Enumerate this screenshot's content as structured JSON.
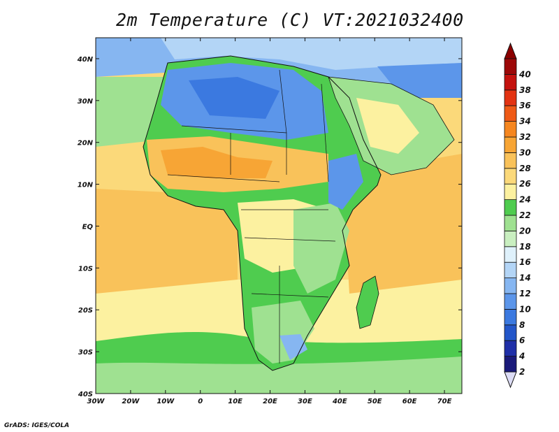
{
  "title": "2m Temperature (C) VT:2021032400",
  "credit": "GrADS: IGES/COLA",
  "map": {
    "lon_range": [
      -30,
      75
    ],
    "lat_range": [
      -40,
      45
    ],
    "lon_ticks": [
      "30W",
      "20W",
      "10W",
      "0",
      "10E",
      "20E",
      "30E",
      "40E",
      "50E",
      "60E",
      "70E"
    ],
    "lat_ticks": [
      "40S",
      "30S",
      "20S",
      "10S",
      "EQ",
      "10N",
      "20N",
      "30N",
      "40N"
    ]
  },
  "colorbar": {
    "labels": [
      "2",
      "4",
      "6",
      "8",
      "10",
      "12",
      "14",
      "16",
      "18",
      "20",
      "22",
      "24",
      "26",
      "28",
      "30",
      "32",
      "34",
      "36",
      "38",
      "40"
    ],
    "colors": [
      "#1a1a7a",
      "#1f2fa8",
      "#2356c9",
      "#3b79e0",
      "#5c96ea",
      "#86b6f1",
      "#b3d5f6",
      "#dff1fb",
      "#c9efc0",
      "#9fe191",
      "#4fcc4f",
      "#fcf1a0",
      "#fbd97a",
      "#f9c25a",
      "#f7a535",
      "#f5861f",
      "#ef5a16",
      "#e33312",
      "#c4120e",
      "#9c0808"
    ],
    "under_color": "#dcdcf5",
    "over_color": "#8b0000"
  }
}
